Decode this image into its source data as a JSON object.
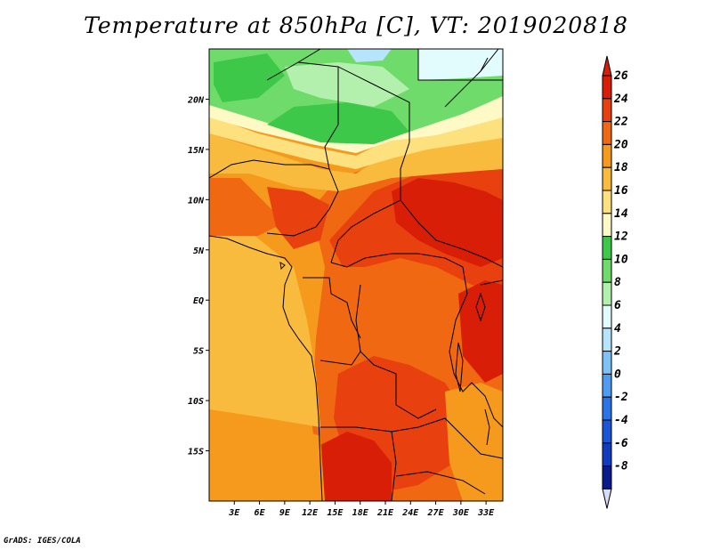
{
  "title": "Temperature at 850hPa [C], VT: 2019020818",
  "footer": "GrADS: IGES/COLA",
  "map": {
    "lon_range": [
      0,
      35
    ],
    "lat_range": [
      -20,
      25
    ],
    "lat_ticks": [
      {
        "value": 20,
        "label": "20N"
      },
      {
        "value": 15,
        "label": "15N"
      },
      {
        "value": 10,
        "label": "10N"
      },
      {
        "value": 5,
        "label": "5N"
      },
      {
        "value": 0,
        "label": "EQ"
      },
      {
        "value": -5,
        "label": "5S"
      },
      {
        "value": -10,
        "label": "10S"
      },
      {
        "value": -15,
        "label": "15S"
      }
    ],
    "lon_ticks": [
      {
        "value": 3,
        "label": "3E"
      },
      {
        "value": 6,
        "label": "6E"
      },
      {
        "value": 9,
        "label": "9E"
      },
      {
        "value": 12,
        "label": "12E"
      },
      {
        "value": 15,
        "label": "15E"
      },
      {
        "value": 18,
        "label": "18E"
      },
      {
        "value": 21,
        "label": "21E"
      },
      {
        "value": 24,
        "label": "24E"
      },
      {
        "value": 27,
        "label": "27E"
      },
      {
        "value": 30,
        "label": "30E"
      },
      {
        "value": 33,
        "label": "33E"
      }
    ]
  },
  "colorbar": {
    "bins": [
      {
        "label": "26",
        "color": "#d81e06"
      },
      {
        "label": "24",
        "color": "#e8400f"
      },
      {
        "label": "22",
        "color": "#f16812"
      },
      {
        "label": "20",
        "color": "#f59a1c"
      },
      {
        "label": "18",
        "color": "#f9bb3e"
      },
      {
        "label": "16",
        "color": "#fde17f"
      },
      {
        "label": "14",
        "color": "#fff9c6"
      },
      {
        "label": "12",
        "color": "#3ec84a"
      },
      {
        "label": "10",
        "color": "#6fdb6a"
      },
      {
        "label": "8",
        "color": "#b4f0ad"
      },
      {
        "label": "6",
        "color": "#e2fbfc"
      },
      {
        "label": "4",
        "color": "#b5e4fb"
      },
      {
        "label": "2",
        "color": "#7dc1f7"
      },
      {
        "label": "0",
        "color": "#4d9cf2"
      },
      {
        "label": "-2",
        "color": "#2a74e8"
      },
      {
        "label": "-4",
        "color": "#1b55d8"
      },
      {
        "label": "-6",
        "color": "#123cbf"
      },
      {
        "label": "-8",
        "color": "#0b1a8c"
      }
    ],
    "min_color": "#d9dcf8"
  }
}
